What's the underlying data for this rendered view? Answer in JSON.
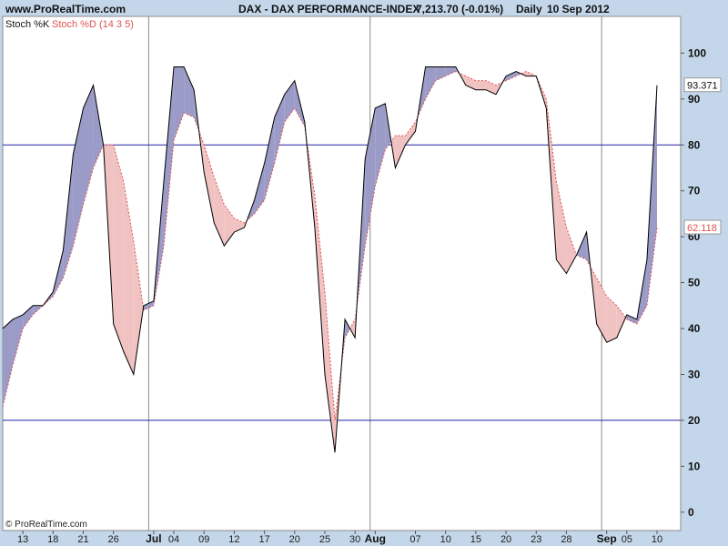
{
  "header": {
    "site": "www.ProRealTime.com",
    "instrument": "DAX - DAX PERFORMANCE-INDEX",
    "quote": "7,213.70 (-0.01%)",
    "period": "Daily",
    "date": "10 Sep 2012"
  },
  "legend": {
    "k_label": "Stoch %K",
    "d_label": "Stoch %D (14 3 5)"
  },
  "footer": {
    "copyright": "© ProRealTime.com"
  },
  "colors": {
    "background": "#c4d7ea",
    "plot_background": "#ffffff",
    "k_line": "#000000",
    "d_line": "#e05252",
    "fill_k_above": "#9b9bc7",
    "fill_d_above": "#f0c2c2",
    "reference_line": "#2222aa",
    "separator": "#8a8a8a"
  },
  "chart_data": {
    "type": "line",
    "x": [
      "2012-06-11",
      "2012-06-12",
      "2012-06-13",
      "2012-06-14",
      "2012-06-15",
      "2012-06-18",
      "2012-06-19",
      "2012-06-20",
      "2012-06-21",
      "2012-06-22",
      "2012-06-25",
      "2012-06-26",
      "2012-06-27",
      "2012-06-28",
      "2012-06-29",
      "2012-07-02",
      "2012-07-03",
      "2012-07-04",
      "2012-07-05",
      "2012-07-06",
      "2012-07-09",
      "2012-07-10",
      "2012-07-11",
      "2012-07-12",
      "2012-07-13",
      "2012-07-16",
      "2012-07-17",
      "2012-07-18",
      "2012-07-19",
      "2012-07-20",
      "2012-07-23",
      "2012-07-24",
      "2012-07-25",
      "2012-07-26",
      "2012-07-27",
      "2012-07-30",
      "2012-07-31",
      "2012-08-01",
      "2012-08-02",
      "2012-08-03",
      "2012-08-06",
      "2012-08-07",
      "2012-08-08",
      "2012-08-09",
      "2012-08-10",
      "2012-08-13",
      "2012-08-14",
      "2012-08-15",
      "2012-08-16",
      "2012-08-17",
      "2012-08-20",
      "2012-08-21",
      "2012-08-22",
      "2012-08-23",
      "2012-08-24",
      "2012-08-27",
      "2012-08-28",
      "2012-08-29",
      "2012-08-30",
      "2012-08-31",
      "2012-09-03",
      "2012-09-04",
      "2012-09-05",
      "2012-09-06",
      "2012-09-07",
      "2012-09-10"
    ],
    "series": [
      {
        "name": "Stoch %K",
        "values": [
          40,
          42,
          43,
          45,
          45,
          48,
          57,
          78,
          88,
          93,
          80,
          41,
          35,
          30,
          45,
          46,
          72,
          97,
          97,
          92,
          74,
          63,
          58,
          61,
          62,
          68,
          76,
          86,
          91,
          94,
          85,
          62,
          30,
          13,
          42,
          38,
          77,
          88,
          89,
          75,
          80,
          83,
          97,
          97,
          97,
          97,
          93,
          92,
          92,
          91,
          95,
          96,
          95,
          95,
          88,
          55,
          52,
          56,
          61,
          41,
          37,
          38,
          43,
          42,
          55,
          93
        ],
        "last_label": "93.371"
      },
      {
        "name": "Stoch %D (14 3 5)",
        "values": [
          23,
          32,
          40,
          43,
          45,
          47,
          51,
          58,
          67,
          75,
          80,
          80,
          72,
          59,
          44,
          45,
          58,
          81,
          87,
          86,
          80,
          73,
          67,
          64,
          63,
          65,
          68,
          76,
          85,
          88,
          84,
          69,
          48,
          20,
          38,
          42,
          58,
          71,
          79,
          82,
          82,
          85,
          90,
          94,
          95,
          96,
          95,
          94,
          94,
          93,
          94,
          95,
          96,
          95,
          90,
          72,
          62,
          56,
          55,
          51,
          47,
          45,
          42,
          41,
          45,
          62
        ],
        "last_label": "62.118"
      }
    ],
    "xlabel": "",
    "ylabel": "",
    "ylim": [
      -4,
      108
    ],
    "y_ticks": [
      0,
      10,
      20,
      30,
      40,
      50,
      60,
      70,
      80,
      90,
      100
    ],
    "reference_lines": [
      20,
      80
    ],
    "x_ticks": [
      {
        "label": "13",
        "date": "2012-06-13",
        "bold": false
      },
      {
        "label": "18",
        "date": "2012-06-18",
        "bold": false
      },
      {
        "label": "21",
        "date": "2012-06-21",
        "bold": false
      },
      {
        "label": "26",
        "date": "2012-06-26",
        "bold": false
      },
      {
        "label": "Jul",
        "date": "2012-07-02",
        "bold": true
      },
      {
        "label": "04",
        "date": "2012-07-04",
        "bold": false
      },
      {
        "label": "09",
        "date": "2012-07-09",
        "bold": false
      },
      {
        "label": "12",
        "date": "2012-07-12",
        "bold": false
      },
      {
        "label": "17",
        "date": "2012-07-17",
        "bold": false
      },
      {
        "label": "20",
        "date": "2012-07-20",
        "bold": false
      },
      {
        "label": "25",
        "date": "2012-07-25",
        "bold": false
      },
      {
        "label": "30",
        "date": "2012-07-30",
        "bold": false
      },
      {
        "label": "Aug",
        "date": "2012-08-01",
        "bold": true
      },
      {
        "label": "07",
        "date": "2012-08-07",
        "bold": false
      },
      {
        "label": "10",
        "date": "2012-08-10",
        "bold": false
      },
      {
        "label": "15",
        "date": "2012-08-15",
        "bold": false
      },
      {
        "label": "20",
        "date": "2012-08-20",
        "bold": false
      },
      {
        "label": "23",
        "date": "2012-08-23",
        "bold": false
      },
      {
        "label": "28",
        "date": "2012-08-28",
        "bold": false
      },
      {
        "label": "Sep",
        "date": "2012-09-03",
        "bold": true
      },
      {
        "label": "05",
        "date": "2012-09-05",
        "bold": false
      },
      {
        "label": "10",
        "date": "2012-09-10",
        "bold": false
      }
    ],
    "month_separators": [
      "2012-07-02",
      "2012-08-01",
      "2012-09-03"
    ],
    "grid": false,
    "legend_position": "top-left"
  }
}
